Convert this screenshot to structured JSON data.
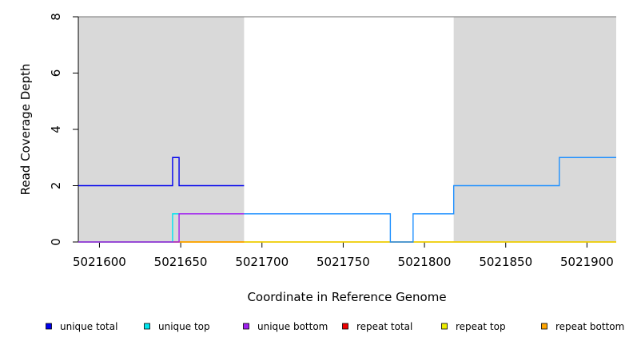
{
  "chart_data": {
    "type": "line",
    "xlabel": "Coordinate in Reference Genome",
    "ylabel": "Read Coverage Depth",
    "xlim": [
      5021587,
      5021918
    ],
    "ylim": [
      0,
      8
    ],
    "x_ticks": [
      5021600,
      5021650,
      5021700,
      5021750,
      5021800,
      5021850,
      5021900
    ],
    "x_tick_labels": [
      "5021600",
      "5021650",
      "5021700",
      "5021750",
      "5021800",
      "5021850",
      "5021900"
    ],
    "y_ticks": [
      0,
      2,
      4,
      6,
      8
    ],
    "y_tick_labels": [
      "0",
      "2",
      "4",
      "6",
      "8"
    ],
    "shaded_regions": [
      {
        "x0": 5021587,
        "x1": 5021689,
        "color": "#d9d9d9"
      },
      {
        "x0": 5021818,
        "x1": 5021918,
        "color": "#d9d9d9"
      }
    ],
    "series": [
      {
        "name": "unique total",
        "color": "#0000ee",
        "step": true,
        "x": [
          5021587,
          5021645,
          5021649,
          5021689
        ],
        "y": [
          2,
          3,
          2,
          2
        ]
      },
      {
        "name": "unique total",
        "color": "#1e90ff",
        "step": true,
        "legend": false,
        "x": [
          5021689,
          5021779,
          5021793,
          5021818,
          5021883,
          5021918
        ],
        "y": [
          1,
          0,
          1,
          2,
          3,
          3
        ]
      },
      {
        "name": "unique top",
        "color": "#00e5ee",
        "step": true,
        "x": [
          5021587,
          5021645,
          5021689
        ],
        "y": [
          0,
          1,
          1
        ]
      },
      {
        "name": "unique bottom",
        "color": "#a020f0",
        "step": true,
        "x": [
          5021587,
          5021649,
          5021689
        ],
        "y": [
          0,
          1,
          1
        ]
      },
      {
        "name": "repeat total",
        "color": "#ee0000",
        "step": true,
        "x": [
          5021587,
          5021918
        ],
        "y": [
          0,
          0
        ]
      },
      {
        "name": "repeat top",
        "color": "#eeee00",
        "step": true,
        "x": [
          5021587,
          5021918
        ],
        "y": [
          0,
          0
        ]
      },
      {
        "name": "repeat bottom",
        "color": "#ffa500",
        "step": true,
        "x": [
          5021587,
          5021689
        ],
        "y": [
          0,
          0
        ]
      }
    ],
    "legend": [
      {
        "label": "unique total",
        "color": "#0000ee"
      },
      {
        "label": "unique top",
        "color": "#00e5ee"
      },
      {
        "label": "unique bottom",
        "color": "#a020f0"
      },
      {
        "label": "repeat total",
        "color": "#ee0000"
      },
      {
        "label": "repeat top",
        "color": "#eeee00"
      },
      {
        "label": "repeat bottom",
        "color": "#ffa500"
      }
    ],
    "legend_position": "bottom",
    "grid": false
  }
}
